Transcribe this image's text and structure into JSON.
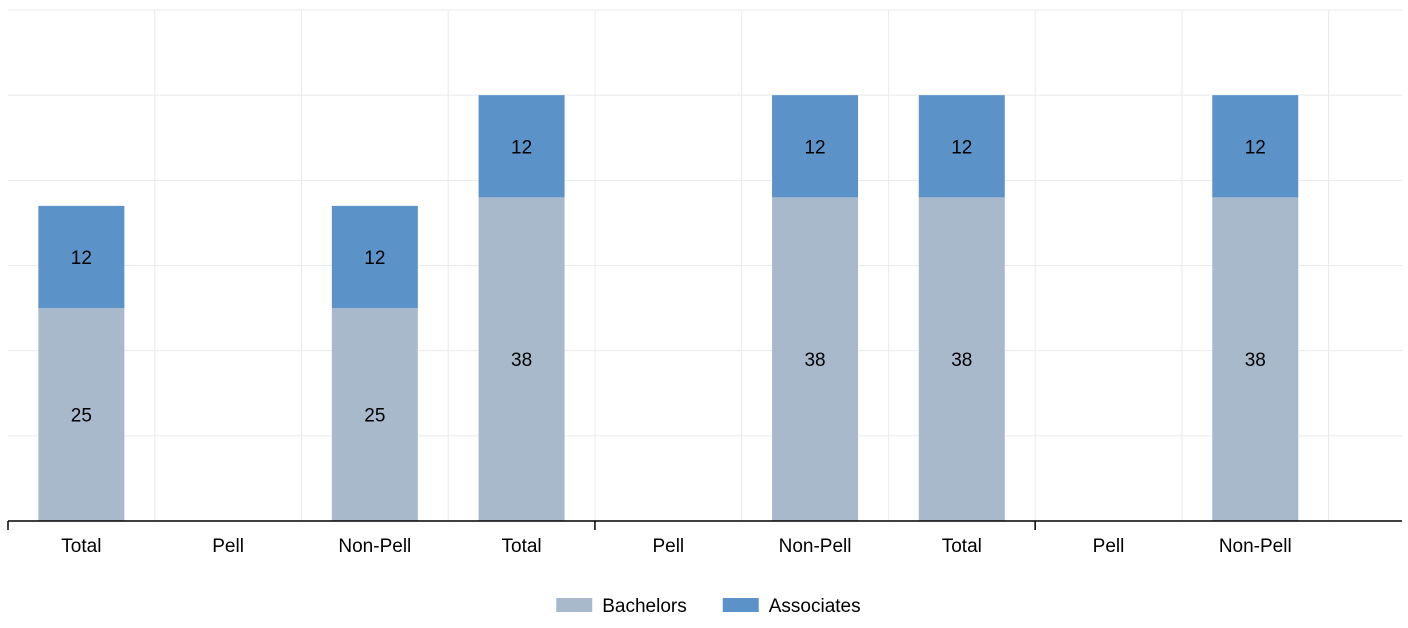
{
  "chart_data": {
    "type": "bar",
    "stacked": true,
    "categories": [
      "Total",
      "Pell",
      "Non-Pell",
      "Total",
      "Pell",
      "Non-Pell",
      "Total",
      "Pell",
      "Non-Pell"
    ],
    "groups": 3,
    "series": [
      {
        "name": "Bachelors",
        "values": [
          25,
          0,
          25,
          38,
          0,
          38,
          38,
          0,
          38
        ]
      },
      {
        "name": "Associates",
        "values": [
          12,
          0,
          12,
          12,
          0,
          12,
          12,
          0,
          12
        ]
      }
    ],
    "ylim": [
      0,
      60
    ],
    "grid": true,
    "legend": "bottom-center",
    "colors": {
      "Bachelors": "#a8b9cc",
      "Associates": "#5b93c9",
      "grid": "#e9eaee",
      "axis": "#000000"
    }
  }
}
